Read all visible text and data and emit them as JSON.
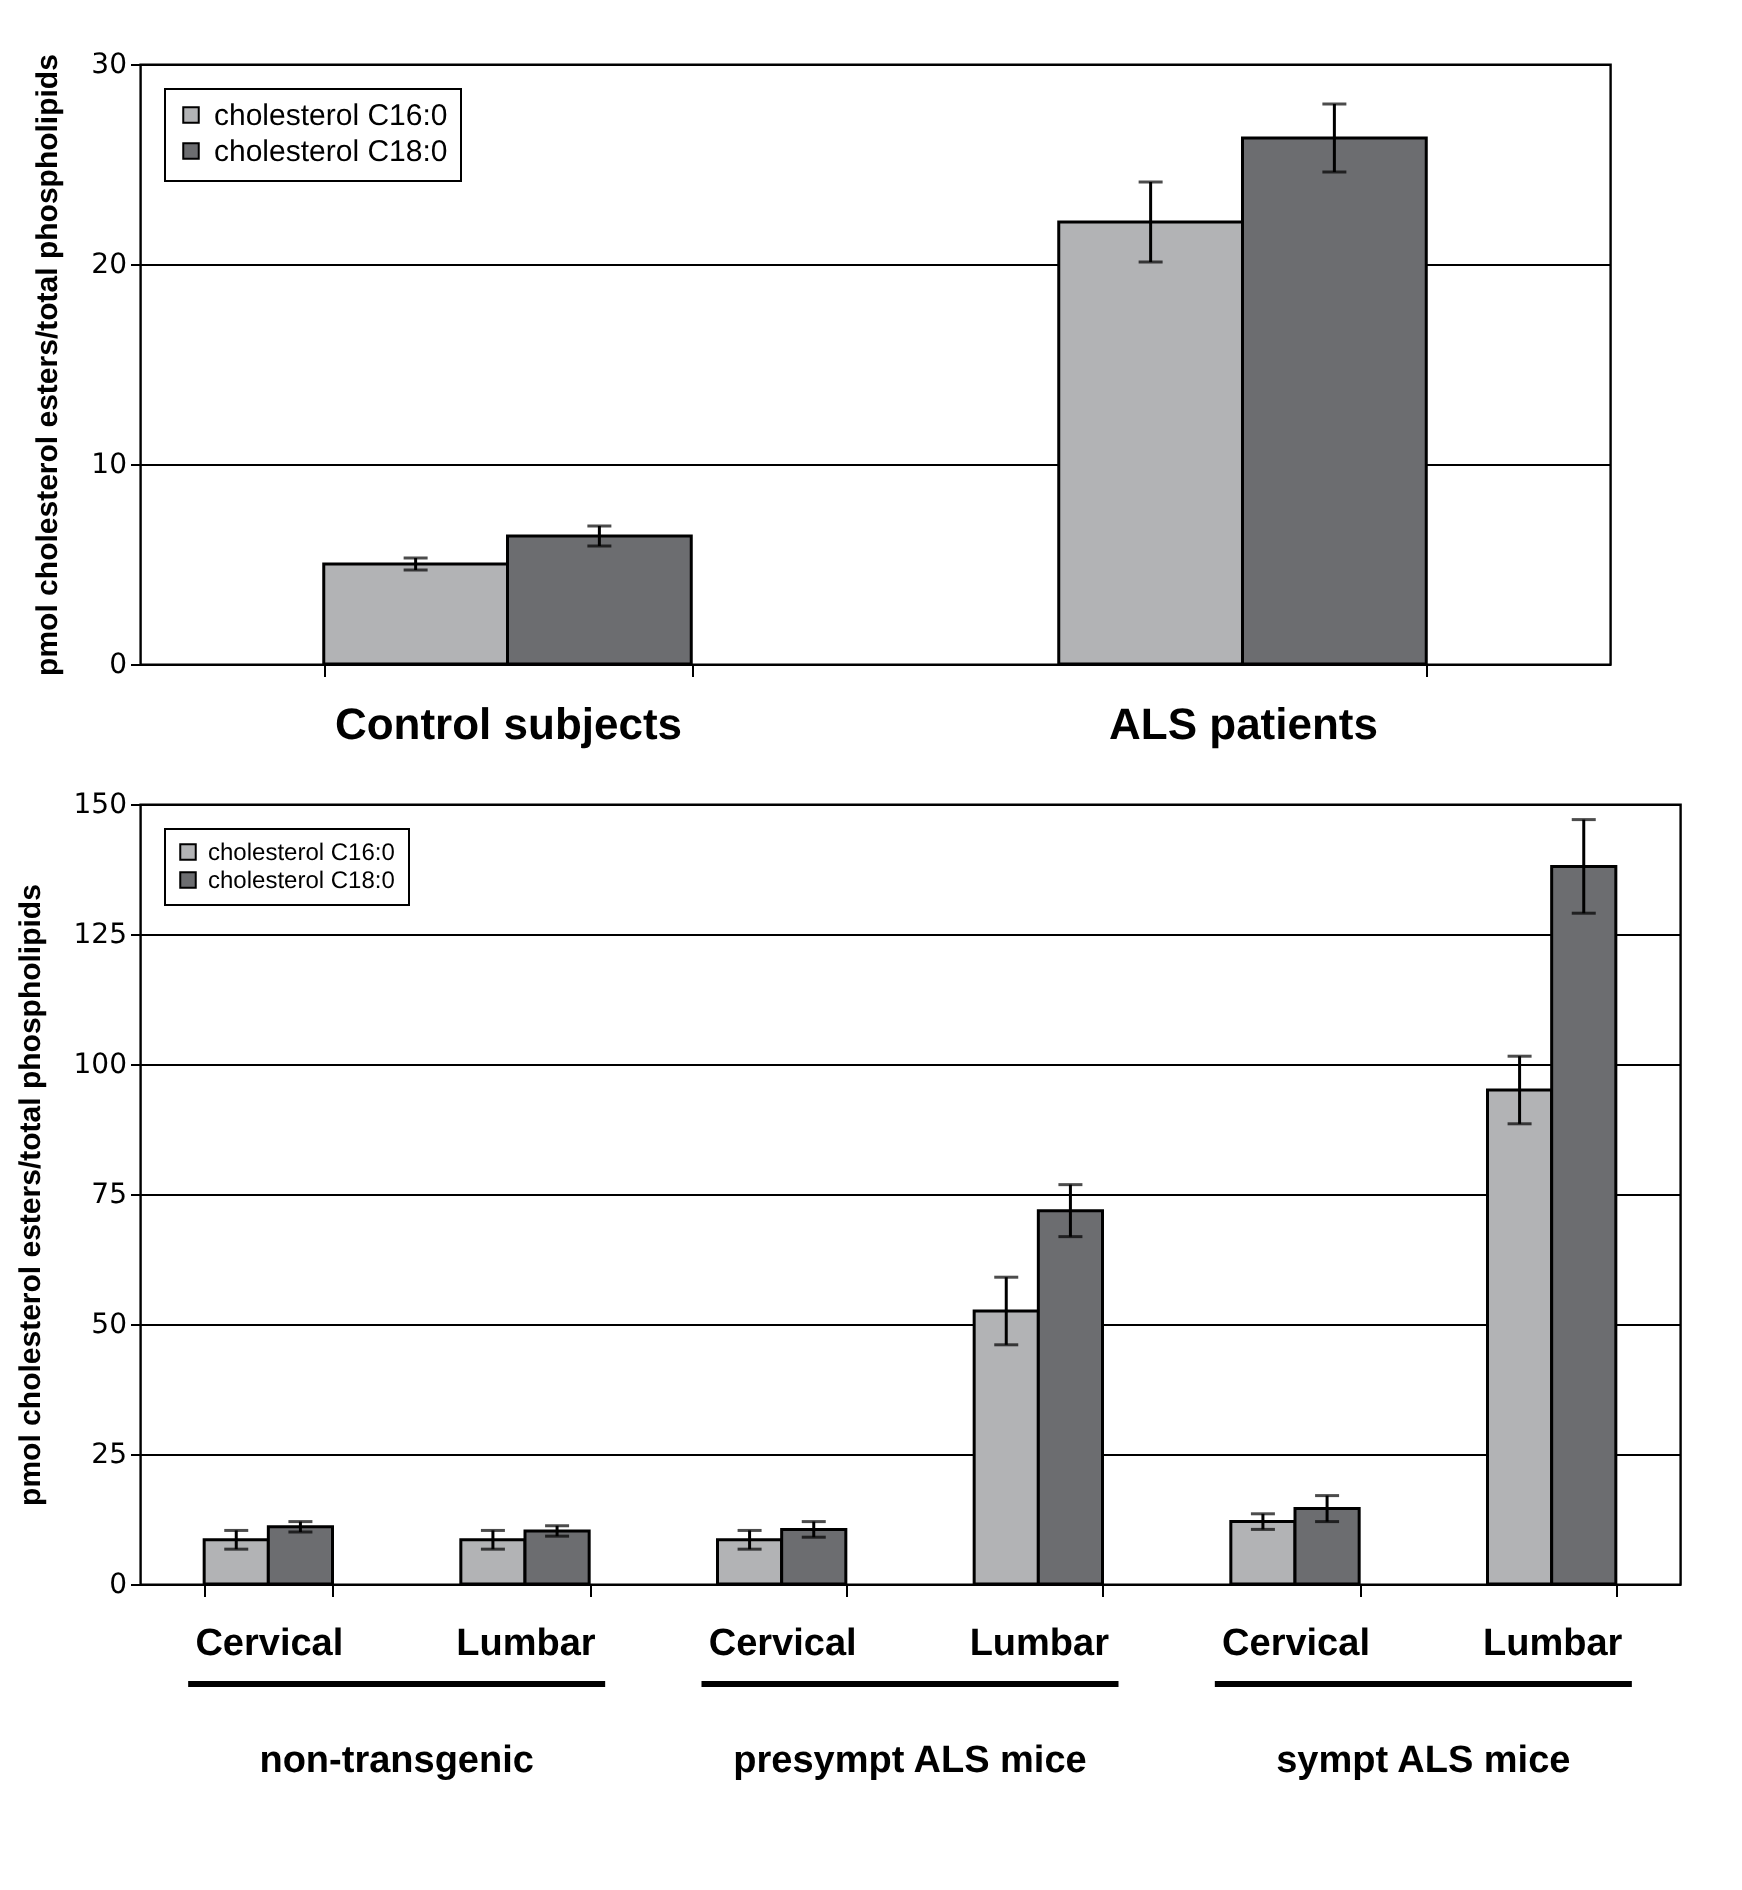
{
  "chart_data": [
    {
      "type": "bar",
      "ylabel": "pmol cholesterol esters/total phospholipids",
      "categories": [
        "Control subjects",
        "ALS patients"
      ],
      "series": [
        {
          "name": "cholesterol C16:0",
          "color": "#b2b3b5",
          "values": [
            5.0,
            22.1
          ],
          "errors": [
            0.3,
            2.0
          ]
        },
        {
          "name": "cholesterol C18:0",
          "color": "#6c6d70",
          "values": [
            6.4,
            26.3
          ],
          "errors": [
            0.5,
            1.7
          ]
        }
      ],
      "ylim": [
        0,
        30
      ],
      "yticks": [
        0,
        10,
        20,
        30
      ],
      "grid": "y",
      "legend": "top left"
    },
    {
      "type": "bar",
      "ylabel": "pmol cholesterol esters/total phospholipids",
      "categories": [
        "Cervical",
        "Lumbar",
        "Cervical",
        "Lumbar",
        "Cervical",
        "Lumbar"
      ],
      "series": [
        {
          "name": "cholesterol C16:0",
          "color": "#b2b3b5",
          "values": [
            8.5,
            8.5,
            8.5,
            52.5,
            12,
            95
          ],
          "errors": [
            1.8,
            1.8,
            1.8,
            6.5,
            1.5,
            6.5
          ]
        },
        {
          "name": "cholesterol C18:0",
          "color": "#6c6d70",
          "values": [
            11,
            10.2,
            10.5,
            71.8,
            14.5,
            138
          ],
          "errors": [
            1,
            1,
            1.5,
            5,
            2.5,
            9
          ]
        }
      ],
      "ylim": [
        0,
        150
      ],
      "yticks": [
        0,
        25,
        50,
        75,
        100,
        125,
        150
      ],
      "grid": "y",
      "legend": "top left",
      "annotations": [
        "non-transgenic",
        "presympt  ALS mice",
        "sympt ALS mice"
      ]
    }
  ]
}
